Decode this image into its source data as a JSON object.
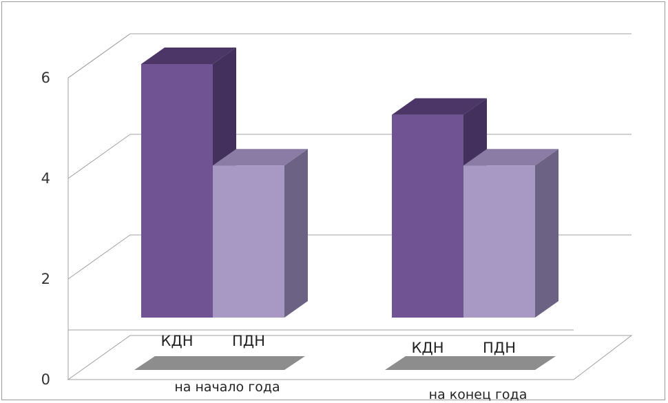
{
  "chart_data": {
    "type": "bar",
    "three_d": true,
    "title": "",
    "xlabel": "",
    "ylabel": "",
    "ylim": [
      0,
      6
    ],
    "y_ticks": [
      0,
      2,
      4,
      6
    ],
    "grid": true,
    "groups": [
      {
        "label": "на начало года",
        "bars": [
          {
            "label": "КДН",
            "value": 6
          },
          {
            "label": "ПДН",
            "value": 4
          }
        ]
      },
      {
        "label": "на конец года",
        "bars": [
          {
            "label": "КДН",
            "value": 5
          },
          {
            "label": "ПДН",
            "value": 4
          }
        ]
      }
    ],
    "colors": {
      "КДН": {
        "front": "#705392",
        "side": "#43305d",
        "top": "#4b3667"
      },
      "ПДН": {
        "front": "#a898c4",
        "side": "#6c6384",
        "top": "#8a7ca4"
      },
      "grid": "#a0a0a0",
      "axis_text": "#333333",
      "shadow": "#8d8d8d"
    }
  }
}
